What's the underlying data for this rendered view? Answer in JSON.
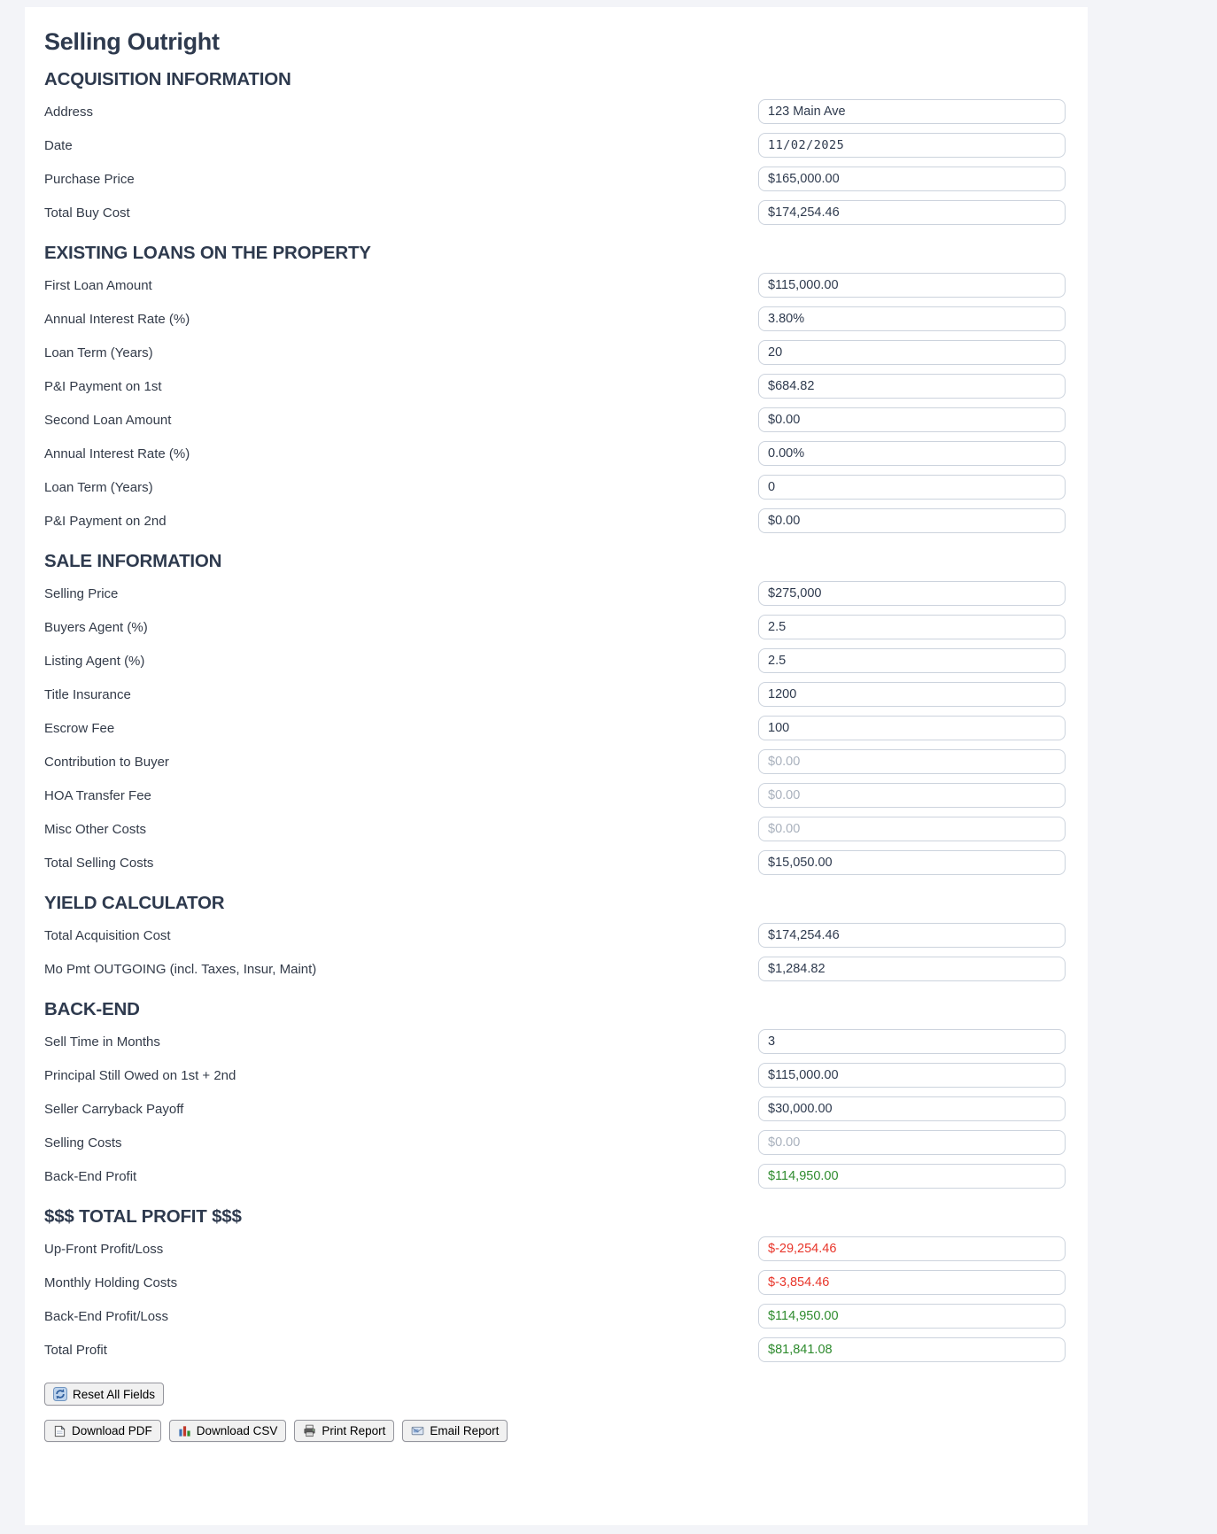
{
  "page_title": "Selling Outright",
  "colors": {
    "green": "#2e8b2e",
    "red": "#e8352a"
  },
  "sections": [
    {
      "heading": "ACQUISITION INFORMATION",
      "fields": [
        {
          "label": "Address",
          "value": "123 Main Ave"
        },
        {
          "label": "Date",
          "value": "11/02/2025",
          "mono": true
        },
        {
          "label": "Purchase Price",
          "value": "$165,000.00"
        },
        {
          "label": "Total Buy Cost",
          "value": "$174,254.46"
        }
      ]
    },
    {
      "heading": "EXISTING LOANS ON THE PROPERTY",
      "fields": [
        {
          "label": "First Loan Amount",
          "value": "$115,000.00"
        },
        {
          "label": "Annual Interest Rate (%)",
          "value": "3.80%"
        },
        {
          "label": "Loan Term (Years)",
          "value": "20"
        },
        {
          "label": "P&I Payment on 1st",
          "value": "$684.82"
        },
        {
          "label": "Second Loan Amount",
          "value": "$0.00"
        },
        {
          "label": "Annual Interest Rate (%)",
          "value": "0.00%"
        },
        {
          "label": "Loan Term (Years)",
          "value": "0"
        },
        {
          "label": "P&I Payment on 2nd",
          "value": "$0.00"
        }
      ]
    },
    {
      "heading": "SALE INFORMATION",
      "fields": [
        {
          "label": "Selling Price",
          "value": "$275,000"
        },
        {
          "label": "Buyers Agent (%)",
          "value": "2.5"
        },
        {
          "label": "Listing Agent (%)",
          "value": "2.5"
        },
        {
          "label": "Title Insurance",
          "value": "1200"
        },
        {
          "label": "Escrow Fee",
          "value": "100"
        },
        {
          "label": "Contribution to Buyer",
          "placeholder": "$0.00"
        },
        {
          "label": "HOA Transfer Fee",
          "placeholder": "$0.00"
        },
        {
          "label": "Misc Other Costs",
          "placeholder": "$0.00"
        },
        {
          "label": "Total Selling Costs",
          "value": "$15,050.00"
        }
      ]
    },
    {
      "heading": "YIELD CALCULATOR",
      "fields": [
        {
          "label": "Total Acquisition Cost",
          "value": "$174,254.46"
        },
        {
          "label": "Mo Pmt OUTGOING (incl. Taxes, Insur, Maint)",
          "value": "$1,284.82"
        }
      ]
    },
    {
      "heading": "BACK-END",
      "fields": [
        {
          "label": "Sell Time in Months",
          "value": "3"
        },
        {
          "label": "Principal Still Owed on 1st + 2nd",
          "value": "$115,000.00"
        },
        {
          "label": "Seller Carryback Payoff",
          "value": "$30,000.00"
        },
        {
          "label": "Selling Costs",
          "placeholder": "$0.00"
        },
        {
          "label": "Back-End Profit",
          "value": "$114,950.00",
          "color": "green"
        }
      ]
    },
    {
      "heading": "$$$ TOTAL PROFIT $$$",
      "fields": [
        {
          "label": "Up-Front Profit/Loss",
          "value": "$-29,254.46",
          "color": "red"
        },
        {
          "label": "Monthly Holding Costs",
          "value": "$-3,854.46",
          "color": "red"
        },
        {
          "label": "Back-End Profit/Loss",
          "value": "$114,950.00",
          "color": "green"
        },
        {
          "label": "Total Profit",
          "value": "$81,841.08",
          "color": "green"
        }
      ]
    }
  ],
  "buttons": {
    "reset": {
      "label": "Reset All Fields",
      "icon": "refresh-icon"
    },
    "actions": [
      {
        "label": "Download PDF",
        "icon": "pdf-file-icon"
      },
      {
        "label": "Download CSV",
        "icon": "bar-chart-icon"
      },
      {
        "label": "Print Report",
        "icon": "printer-icon"
      },
      {
        "label": "Email Report",
        "icon": "email-icon"
      }
    ]
  }
}
